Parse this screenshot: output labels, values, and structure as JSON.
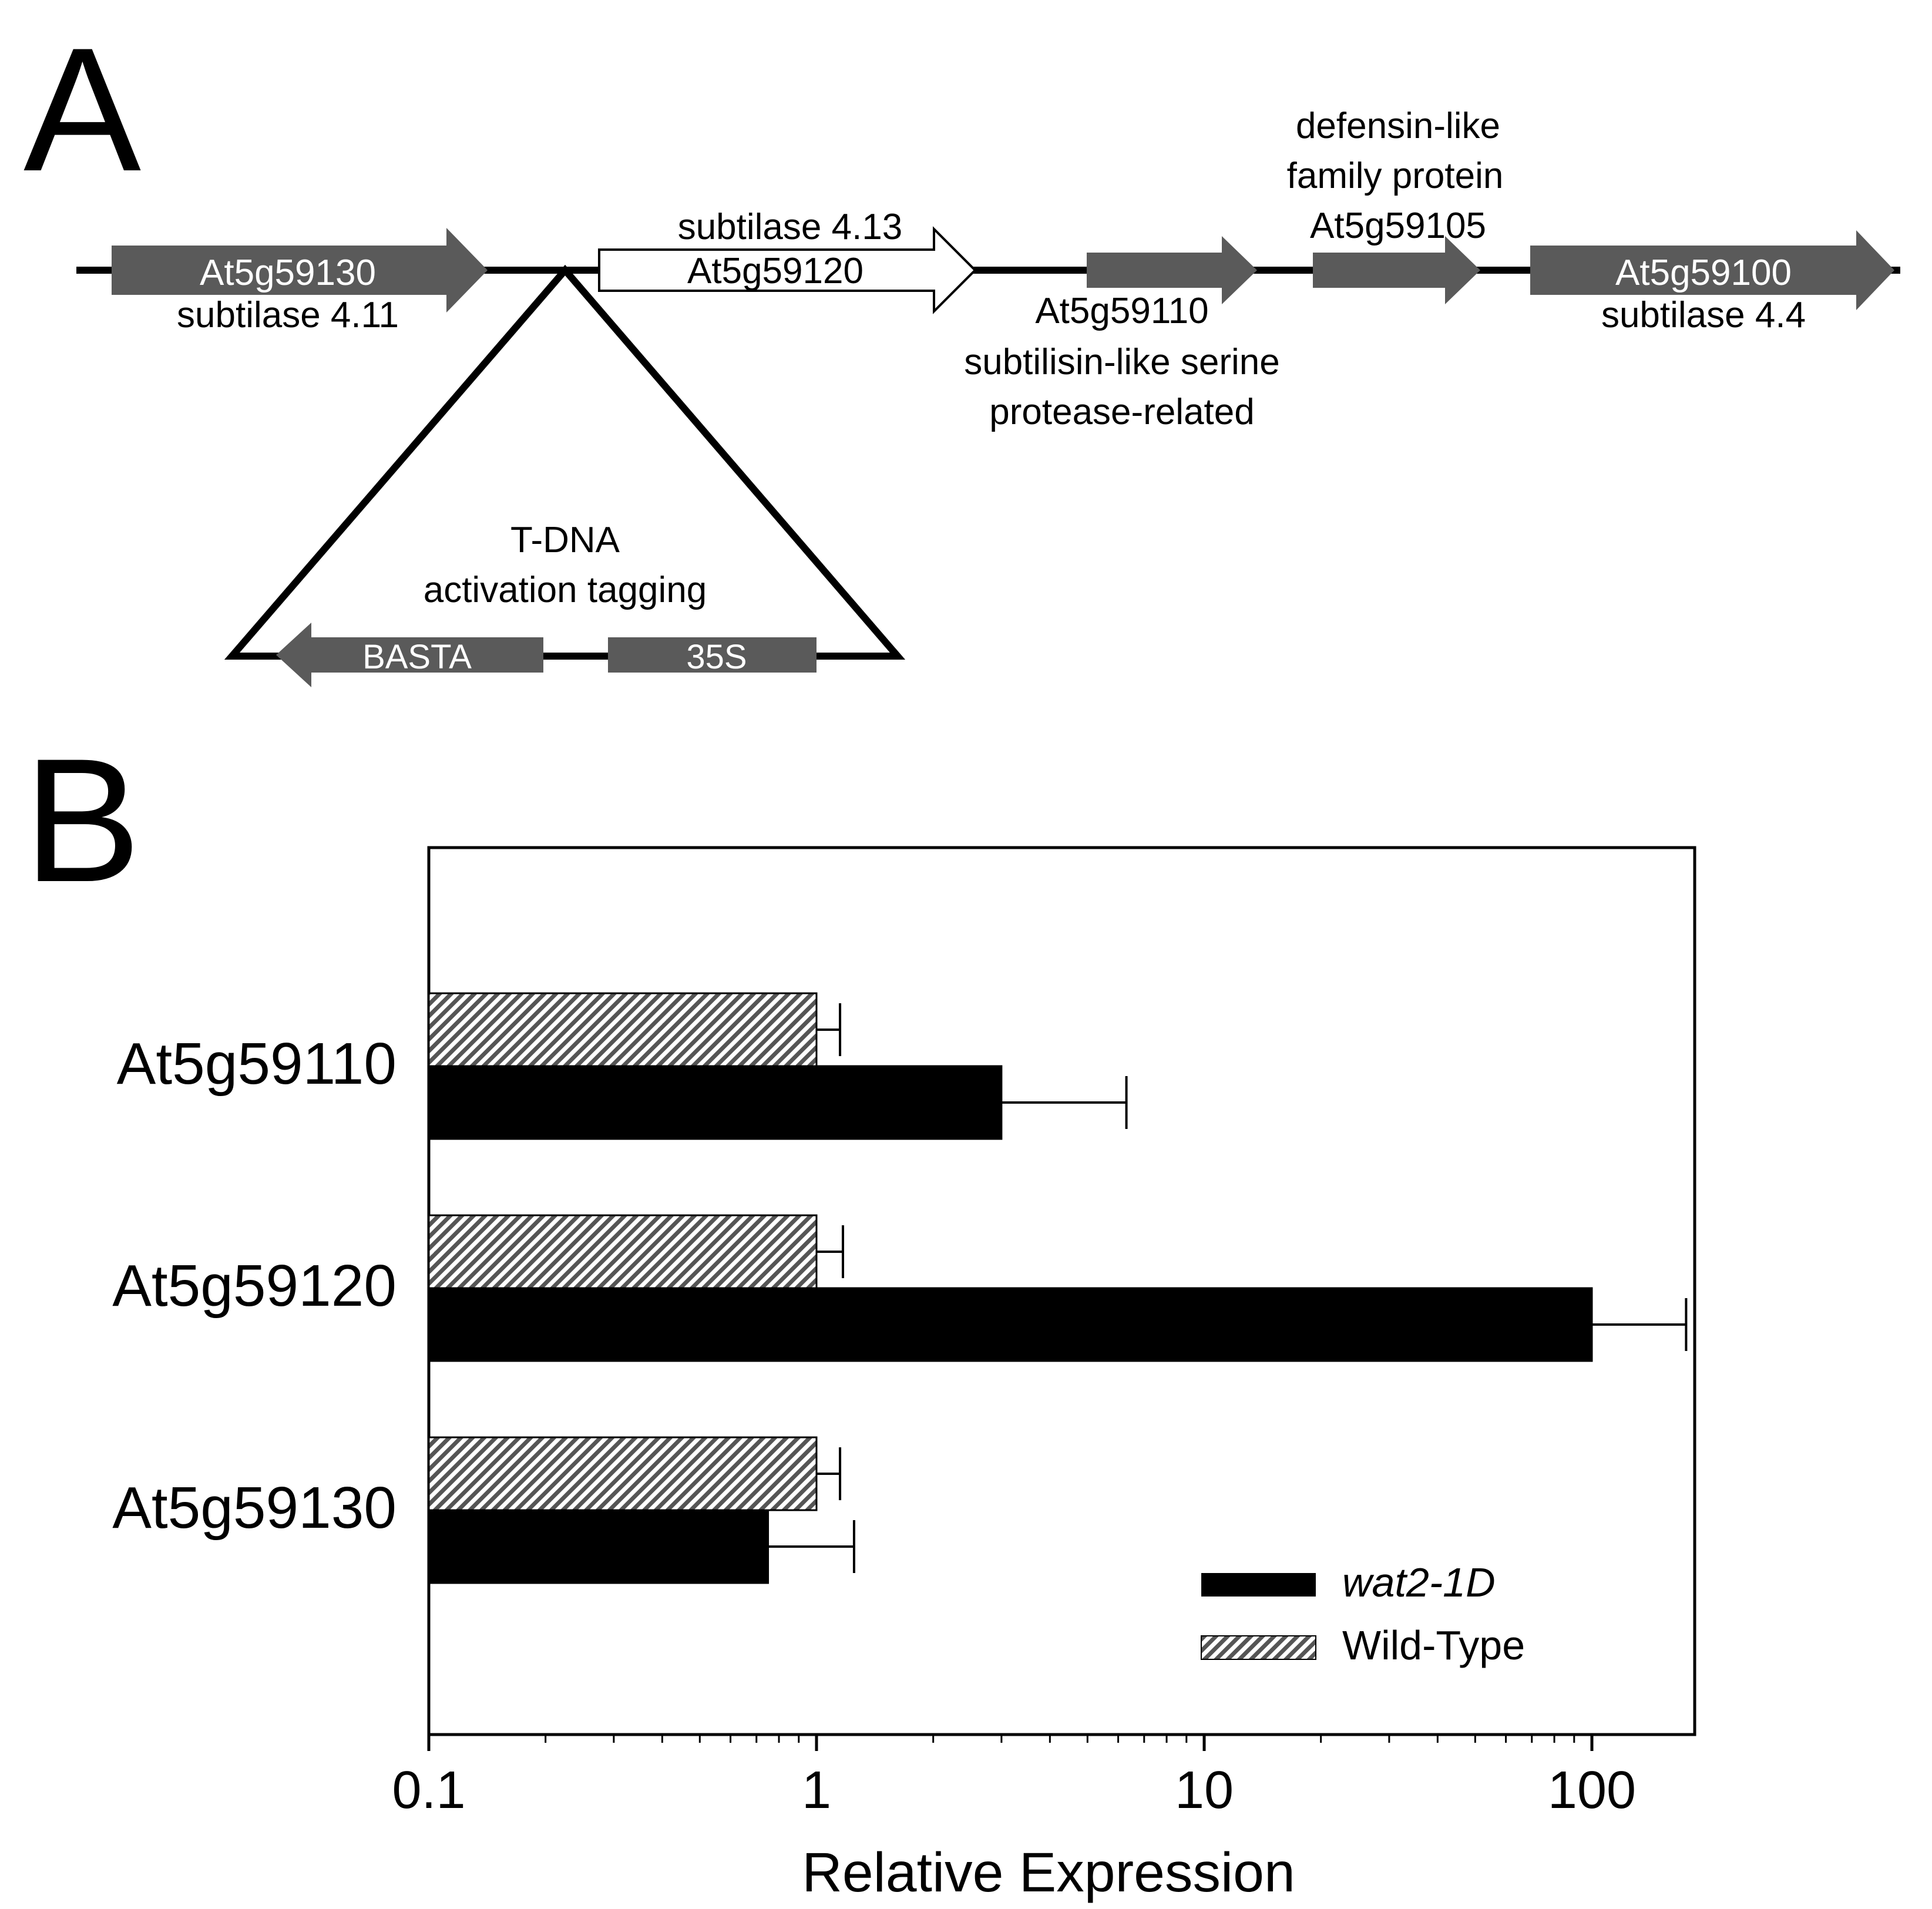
{
  "panel_a": {
    "panel_letter": "A",
    "genes": [
      {
        "id": "At5g59130",
        "name": "subtilase 4.11",
        "style": "filled",
        "direction": "right"
      },
      {
        "id": "At5g59120",
        "name": "subtilase 4.13",
        "style": "open",
        "direction": "right"
      },
      {
        "id": "At5g59110",
        "name": "subtilisin-like serine protease-related",
        "style": "filled",
        "direction": "right"
      },
      {
        "id": "At5g59105",
        "name": "defensin-like family protein",
        "style": "filled",
        "direction": "right"
      },
      {
        "id": "At5g59100",
        "name": "subtilase 4.4",
        "style": "filled",
        "direction": "right"
      }
    ],
    "gene_labels": {
      "g130_id": "At5g59130",
      "g130_name": "subtilase 4.11",
      "g120_name": "subtilase 4.13",
      "g120_id": "At5g59120",
      "g110_id": "At5g59110",
      "g110_name_line1": "subtilisin-like serine",
      "g110_name_line2": "protease-related",
      "g105_name_line1": "defensin-like",
      "g105_name_line2": "family protein",
      "g105_id": "At5g59105",
      "g100_id": "At5g59100",
      "g100_name": "subtilase 4.4"
    },
    "insertion": {
      "title_line1": "T-DNA",
      "title_line2": "activation tagging",
      "basta_label": "BASTA",
      "promoter_label": "35S"
    },
    "colors": {
      "gene_fill": "#5a5a5a",
      "open_fill": "#ffffff",
      "line": "#000000"
    }
  },
  "panel_b": {
    "panel_letter": "B"
  },
  "chart_data": {
    "type": "bar",
    "orientation": "horizontal",
    "categories": [
      "At5g59110",
      "At5g59120",
      "At5g59130"
    ],
    "series": [
      {
        "name": "Wild-Type",
        "pattern": "hatched",
        "values": [
          1.0,
          1.0,
          1.0
        ],
        "error_upper": [
          1.15,
          1.17,
          1.15
        ]
      },
      {
        "name": "wat2-1D",
        "pattern": "solid-black",
        "values": [
          3.0,
          100.0,
          0.75
        ],
        "error_upper": [
          6.3,
          175.0,
          1.25
        ]
      }
    ],
    "xlabel": "Relative Expression",
    "xscale": "log",
    "xlim": [
      0.1,
      190
    ],
    "xticks": [
      "0.1",
      "1",
      "10",
      "100"
    ],
    "legend": {
      "placement": "bottom-right",
      "entries": [
        "wat2-1D",
        "Wild-Type"
      ]
    },
    "grid": false,
    "colors": {
      "wat2-1D": "#000000",
      "Wild-Type": "#7a7a7a"
    }
  }
}
